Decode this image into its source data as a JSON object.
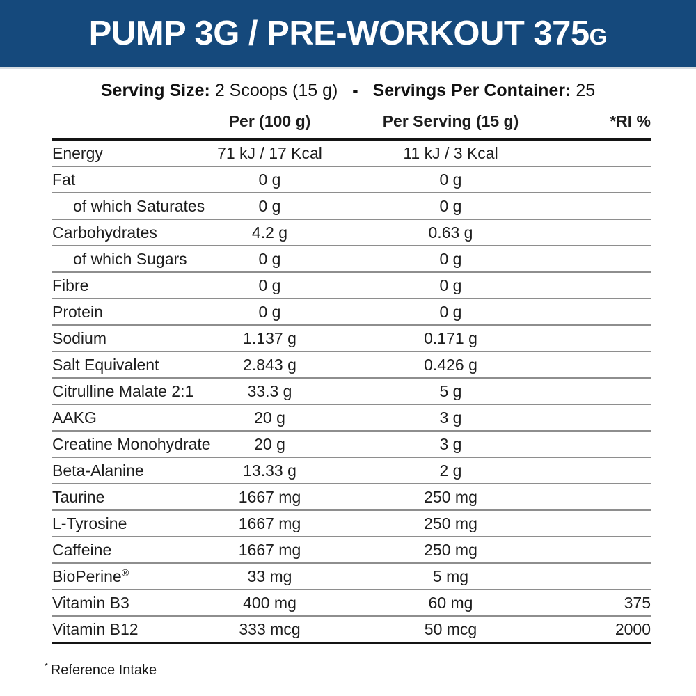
{
  "header": {
    "bar_color": "#15497c",
    "title_main": "PUMP 3G / PRE-WORKOUT 375",
    "title_suffix": "G"
  },
  "serving": {
    "size_label": "Serving Size:",
    "size_value": "2 Scoops (15 g)",
    "separator": "-",
    "container_label": "Servings Per Container:",
    "container_value": "25"
  },
  "table": {
    "columns": [
      "",
      "Per (100 g)",
      "Per Serving (15 g)",
      "*RI %"
    ],
    "rows": [
      {
        "name": "Energy",
        "indent": false,
        "per100": "71 kJ / 17 Kcal",
        "per_serving": "11 kJ / 3 Kcal",
        "ri": ""
      },
      {
        "name": "Fat",
        "indent": false,
        "per100": "0 g",
        "per_serving": "0 g",
        "ri": ""
      },
      {
        "name": "of which Saturates",
        "indent": true,
        "per100": "0 g",
        "per_serving": "0 g",
        "ri": ""
      },
      {
        "name": "Carbohydrates",
        "indent": false,
        "per100": "4.2 g",
        "per_serving": "0.63 g",
        "ri": ""
      },
      {
        "name": "of which Sugars",
        "indent": true,
        "per100": "0 g",
        "per_serving": "0 g",
        "ri": ""
      },
      {
        "name": "Fibre",
        "indent": false,
        "per100": "0 g",
        "per_serving": "0 g",
        "ri": ""
      },
      {
        "name": "Protein",
        "indent": false,
        "per100": "0 g",
        "per_serving": "0 g",
        "ri": ""
      },
      {
        "name": "Sodium",
        "indent": false,
        "per100": "1.137 g",
        "per_serving": "0.171 g",
        "ri": ""
      },
      {
        "name": "Salt Equivalent",
        "indent": false,
        "per100": "2.843 g",
        "per_serving": "0.426 g",
        "ri": ""
      },
      {
        "name": "Citrulline Malate 2:1",
        "indent": false,
        "per100": "33.3 g",
        "per_serving": "5 g",
        "ri": ""
      },
      {
        "name": "AAKG",
        "indent": false,
        "per100": "20 g",
        "per_serving": "3 g",
        "ri": ""
      },
      {
        "name": "Creatine Monohydrate",
        "indent": false,
        "per100": "20 g",
        "per_serving": "3 g",
        "ri": ""
      },
      {
        "name": "Beta-Alanine",
        "indent": false,
        "per100": "13.33 g",
        "per_serving": "2 g",
        "ri": ""
      },
      {
        "name": "Taurine",
        "indent": false,
        "per100": "1667 mg",
        "per_serving": "250 mg",
        "ri": ""
      },
      {
        "name": "L-Tyrosine",
        "indent": false,
        "per100": "1667 mg",
        "per_serving": "250 mg",
        "ri": ""
      },
      {
        "name": "Caffeine",
        "indent": false,
        "per100": "1667 mg",
        "per_serving": "250 mg",
        "ri": ""
      },
      {
        "name": "BioPerine",
        "sup": "®",
        "indent": false,
        "per100": "33 mg",
        "per_serving": "5 mg",
        "ri": ""
      },
      {
        "name": "Vitamin B3",
        "indent": false,
        "per100": "400 mg",
        "per_serving": "60 mg",
        "ri": "375"
      },
      {
        "name": "Vitamin B12",
        "indent": false,
        "per100": "333 mcg",
        "per_serving": "50 mcg",
        "ri": "2000"
      }
    ]
  },
  "footnote": {
    "symbol": "*",
    "text": "Reference Intake"
  }
}
